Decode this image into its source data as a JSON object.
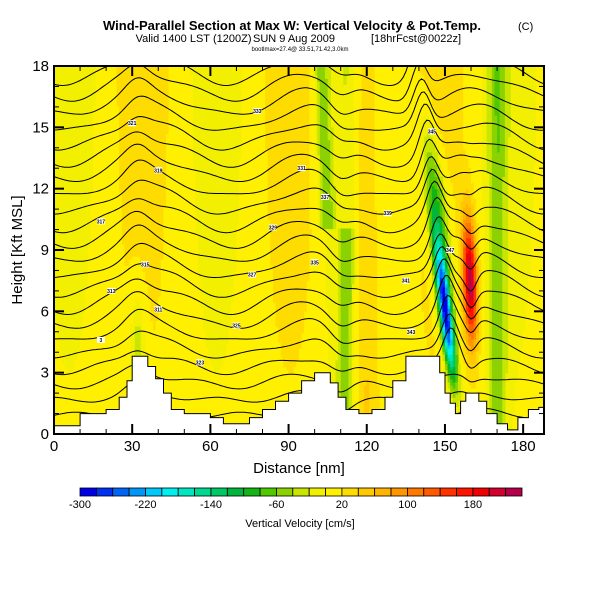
{
  "chart_data": {
    "type": "heatmap",
    "title": "Wind-Parallel Section at Max W: Vertical Velocity & Pot.Temp.",
    "title_mark": "(C)",
    "subtitle": "Valid 1400 LST",
    "subtitle_utc": "(1200Z)",
    "subtitle_date": "SUN 9 Aug 2009",
    "subtitle_fcst": "[18hrFcst@0022z]",
    "subtitle2": "bootlmax=27.4@ 33.51,71.42,3.0km",
    "xlabel": "Distance [nm]",
    "ylabel": "Height [Kft MSL]",
    "xlim": [
      0,
      188
    ],
    "ylim": [
      0,
      18
    ],
    "xticks": [
      "0",
      "30",
      "60",
      "90",
      "120",
      "150",
      "180"
    ],
    "xtick_values": [
      0,
      30,
      60,
      90,
      120,
      150,
      180
    ],
    "yticks": [
      "0",
      "3",
      "6",
      "9",
      "12",
      "15",
      "18"
    ],
    "ytick_values": [
      0,
      3,
      6,
      9,
      12,
      15,
      18
    ],
    "colorbar": {
      "label": "Vertical Velocity [cm/s]",
      "min": -300,
      "step": 20,
      "bins": 27,
      "tick_labels": [
        "-300",
        "-220",
        "-140",
        "-60",
        "20",
        "100",
        "180"
      ],
      "tick_values": [
        -300,
        -220,
        -140,
        -60,
        20,
        100,
        180
      ],
      "colors": [
        "#0000e6",
        "#0030f0",
        "#0064f6",
        "#0096f8",
        "#00c8f8",
        "#00f0f0",
        "#00e6c0",
        "#00d890",
        "#00c864",
        "#00b43c",
        "#14b414",
        "#50c800",
        "#8cd200",
        "#c8e600",
        "#f0f000",
        "#fff000",
        "#ffdc00",
        "#ffc800",
        "#ffb400",
        "#ff9600",
        "#ff7800",
        "#ff5a00",
        "#ff3200",
        "#ff1400",
        "#f00000",
        "#d2002d",
        "#b4004b"
      ]
    },
    "terrain_kft": {
      "x_nm": [
        0,
        5,
        10,
        15,
        20,
        25,
        28,
        30,
        33,
        36,
        39,
        42,
        45,
        50,
        55,
        60,
        65,
        70,
        75,
        80,
        85,
        90,
        95,
        100,
        103,
        106,
        109,
        112,
        117,
        122,
        127,
        130,
        135,
        140,
        145,
        148,
        150,
        152,
        154,
        156,
        158,
        160,
        163,
        166,
        170,
        174,
        178,
        182,
        186,
        188
      ],
      "height": [
        0.4,
        0.4,
        1.0,
        1.0,
        1.2,
        1.8,
        2.6,
        3.8,
        3.8,
        3.3,
        2.7,
        2.0,
        1.2,
        1.0,
        1.0,
        0.8,
        0.5,
        0.5,
        0.8,
        1.2,
        1.6,
        2.0,
        2.6,
        3.0,
        3.0,
        2.5,
        1.8,
        1.2,
        1.0,
        1.2,
        1.8,
        2.6,
        3.8,
        3.8,
        3.8,
        3.0,
        2.0,
        1.5,
        1.0,
        1.6,
        2.0,
        2.0,
        1.6,
        1.0,
        0.5,
        0.2,
        0.8,
        1.2,
        1.3,
        1.3
      ]
    },
    "theta_contour_labels": [
      "3",
      "311",
      "313",
      "315",
      "317",
      "319",
      "321",
      "323",
      "325",
      "327",
      "329",
      "331",
      "333",
      "335",
      "337",
      "339",
      "341",
      "343",
      "345",
      "347"
    ],
    "features": {
      "downdraft_min_cm_s": -300,
      "updraft_max_cm_s": 220,
      "updraft_center_nm": 160,
      "downdraft_center_nm": 152
    }
  }
}
